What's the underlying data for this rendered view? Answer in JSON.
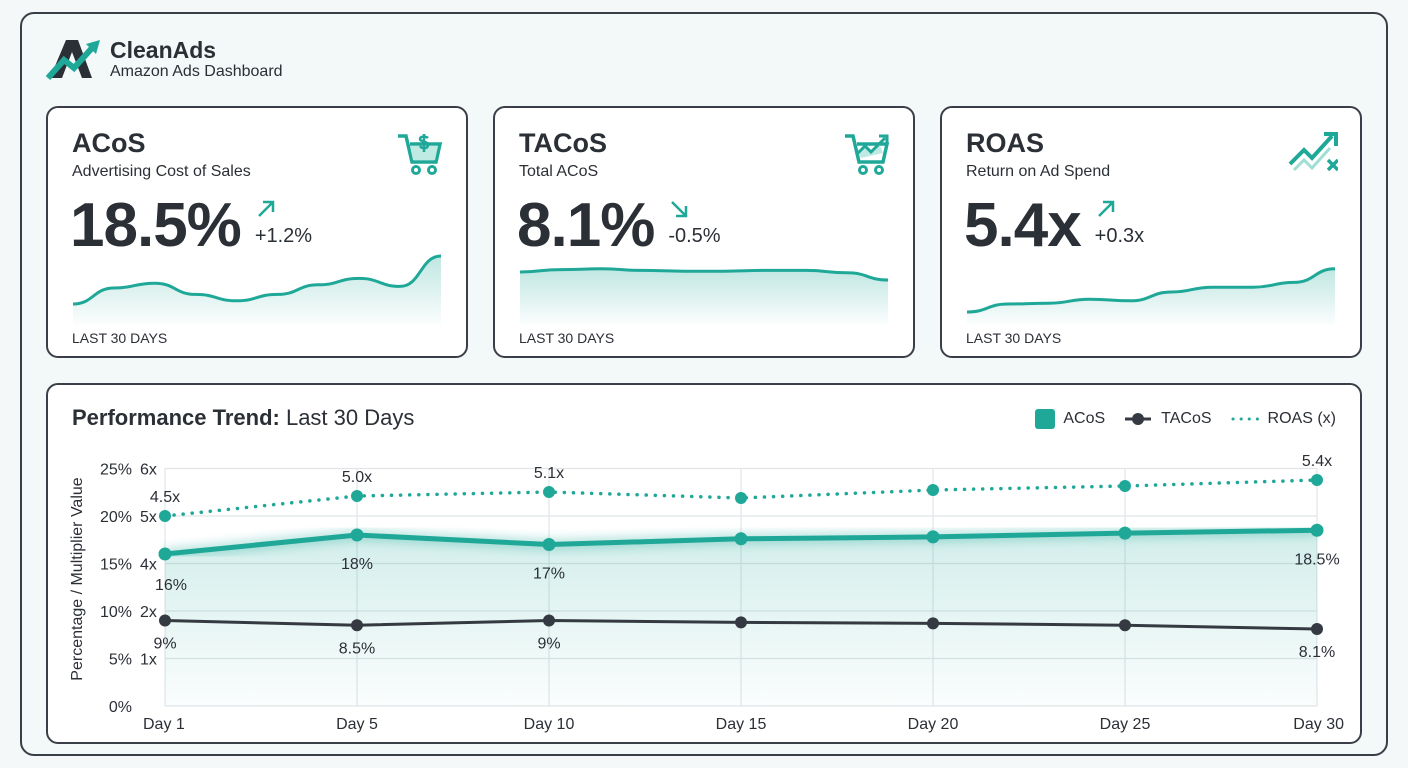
{
  "brand": {
    "name": "CleanAds",
    "subtitle": "Amazon Ads Dashboard"
  },
  "colors": {
    "accent": "#1fa898",
    "dark": "#353a42",
    "border": "#3a3f47"
  },
  "cards": [
    {
      "title": "ACoS",
      "subtitle": "Advertising Cost of Sales",
      "value": "18.5%",
      "delta": "+1.2%",
      "direction": "up",
      "icon": "cart-dollar-icon",
      "footer": "LAST 30 DAYS",
      "sparkline": [
        2,
        4,
        4.6,
        3.2,
        2.4,
        3.2,
        4.4,
        5.2,
        4.2,
        8
      ]
    },
    {
      "title": "TACoS",
      "subtitle": "Total ACoS",
      "value": "8.1%",
      "delta": "-0.5%",
      "direction": "down",
      "icon": "cart-trend-icon",
      "footer": "LAST 30 DAYS",
      "sparkline": [
        6,
        6.3,
        6.4,
        6.2,
        6.1,
        6.1,
        6.2,
        6.2,
        5.9,
        5
      ]
    },
    {
      "title": "ROAS",
      "subtitle": "Return on Ad Spend",
      "value": "5.4x",
      "delta": "+0.3x",
      "direction": "up",
      "icon": "trend-arrow-x-icon",
      "footer": "LAST 30 DAYS",
      "sparkline": [
        1,
        2,
        2.1,
        2.6,
        2.4,
        3.5,
        4.1,
        4.1,
        4.7,
        6.4
      ]
    }
  ],
  "panel": {
    "title_bold": "Performance Trend:",
    "title_rest": " Last 30 Days"
  },
  "chart_data": {
    "type": "line",
    "title": "Performance Trend: Last 30 Days",
    "ylabel": "Percentage / Multiplier Value",
    "categories": [
      "Day 1",
      "Day 5",
      "Day 10",
      "Day 15",
      "Day 20",
      "Day 25",
      "Day 30"
    ],
    "y_ticks_pct": [
      "0%",
      "5%",
      "10%",
      "15%",
      "20%",
      "25%"
    ],
    "y_ticks_x": [
      "",
      "1x",
      "2x",
      "4x",
      "5x",
      "6x"
    ],
    "ylim": [
      0,
      25
    ],
    "grid": true,
    "legend_position": "top-right",
    "series": [
      {
        "name": "ACoS",
        "unit": "%",
        "values": [
          16,
          18,
          17,
          17.6,
          17.8,
          18.2,
          18.5
        ],
        "labels": [
          "16%",
          "18%",
          "17%",
          "",
          "",
          "",
          "18.5%"
        ],
        "color": "#1fa898",
        "style": "thick-area"
      },
      {
        "name": "TACoS",
        "unit": "%",
        "values": [
          9,
          8.5,
          9,
          8.8,
          8.7,
          8.5,
          8.1
        ],
        "labels": [
          "9%",
          "8.5%",
          "9%",
          "",
          "",
          "",
          "8.1%"
        ],
        "color": "#353a42",
        "style": "solid"
      },
      {
        "name": "ROAS (x)",
        "unit": "x",
        "values": [
          4.5,
          5.0,
          5.1,
          4.95,
          5.15,
          5.25,
          5.4
        ],
        "labels": [
          "4.5x",
          "5.0x",
          "5.1x",
          "",
          "",
          "",
          "5.4x"
        ],
        "color": "#1fa898",
        "style": "dotted"
      }
    ]
  }
}
